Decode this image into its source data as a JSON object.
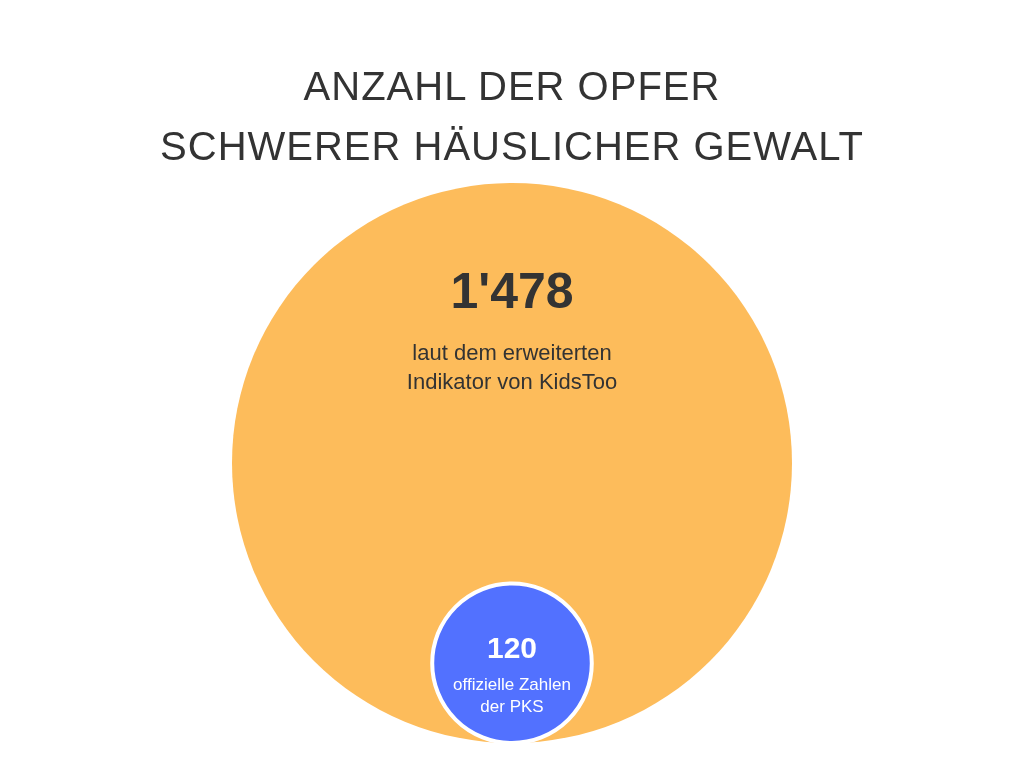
{
  "chart_data": {
    "type": "other",
    "title": "ANZAHL DER OPFER\nSCHWERER HÄUSLICHER GEWALT",
    "categories": [
      "laut dem erweiterten Indikator von KidsToo",
      "offizielle Zahlen der PKS"
    ],
    "values": [
      1478,
      120
    ],
    "value_labels": [
      "1'478",
      "120"
    ],
    "colors": [
      "#fdbc5b",
      "#5271ff"
    ]
  }
}
